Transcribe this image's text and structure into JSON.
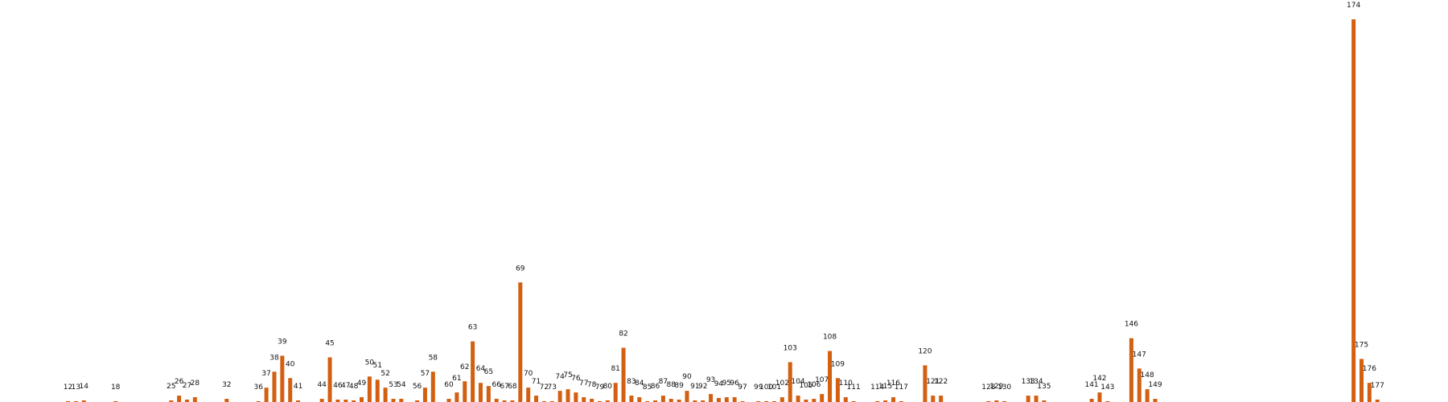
{
  "chart_data": {
    "type": "bar",
    "title": "",
    "xlabel": "",
    "ylabel": "",
    "color": "#d35f10",
    "categories": [
      12,
      13,
      14,
      18,
      25,
      26,
      27,
      28,
      32,
      36,
      37,
      38,
      39,
      40,
      41,
      44,
      45,
      46,
      47,
      48,
      49,
      50,
      51,
      52,
      53,
      54,
      56,
      57,
      58,
      60,
      61,
      62,
      63,
      64,
      65,
      66,
      67,
      68,
      69,
      70,
      71,
      72,
      73,
      74,
      75,
      76,
      77,
      78,
      79,
      80,
      81,
      82,
      83,
      84,
      85,
      86,
      87,
      88,
      89,
      90,
      91,
      92,
      93,
      94,
      95,
      96,
      97,
      99,
      100,
      101,
      102,
      103,
      104,
      105,
      106,
      107,
      108,
      109,
      110,
      111,
      114,
      115,
      116,
      117,
      120,
      121,
      122,
      128,
      129,
      130,
      133,
      134,
      135,
      141,
      142,
      143,
      146,
      147,
      148,
      149,
      174,
      175,
      176,
      177
    ],
    "labels": [
      "12",
      "13",
      "14",
      "18",
      "25",
      "26",
      "27",
      "28",
      "32",
      "36",
      "37",
      "38",
      "39",
      "40",
      "41",
      "44",
      "45",
      "46",
      "47",
      "48",
      "49",
      "50",
      "51",
      "52",
      "53",
      "54",
      "56",
      "57",
      "58",
      "60",
      "61",
      "62",
      "63",
      "64",
      "65",
      "66",
      "67",
      "68",
      "69",
      "70",
      "71",
      "72",
      "73",
      "74",
      "75",
      "76",
      "77",
      "78",
      "79",
      "80",
      "81",
      "82",
      "83",
      "84",
      "85",
      "86",
      "87",
      "88",
      "89",
      "90",
      "91",
      "92",
      "93",
      "94",
      "95",
      "96",
      "97",
      "99",
      "100",
      "101",
      "102",
      "103",
      "104",
      "105",
      "106",
      "107",
      "108",
      "109",
      "110",
      "111",
      "114",
      "115",
      "116",
      "117",
      "120",
      "121",
      "122",
      "128",
      "129",
      "130",
      "133",
      "134",
      "135",
      "141",
      "142",
      "143",
      "146",
      "147",
      "148",
      "149",
      "174",
      "175",
      "176",
      "177"
    ],
    "values": [
      0.5,
      0.5,
      1,
      0.5,
      1,
      4,
      1.5,
      3,
      2,
      0.5,
      9,
      19,
      29,
      15,
      1,
      2,
      28,
      1.5,
      1.5,
      1,
      3,
      16,
      14,
      9,
      2,
      2,
      1,
      9,
      19,
      2,
      6,
      13,
      38,
      12,
      10,
      2,
      1,
      1,
      75,
      9,
      4,
      0.5,
      0.5,
      7,
      8,
      6,
      3,
      2,
      0.5,
      1,
      12,
      34,
      4,
      3,
      0.5,
      1,
      4,
      2,
      1.5,
      7,
      1,
      1,
      5,
      2.5,
      3,
      3,
      0.5,
      0.5,
      0.5,
      0.5,
      3,
      25,
      4,
      1.5,
      2,
      5,
      32,
      15,
      3,
      0.5,
      0.5,
      1,
      3,
      0.5,
      23,
      4,
      4,
      0.5,
      1,
      0.5,
      4,
      4,
      1,
      2,
      6,
      0.5,
      40,
      21,
      8,
      2,
      240,
      27,
      12,
      1.5
    ]
  }
}
